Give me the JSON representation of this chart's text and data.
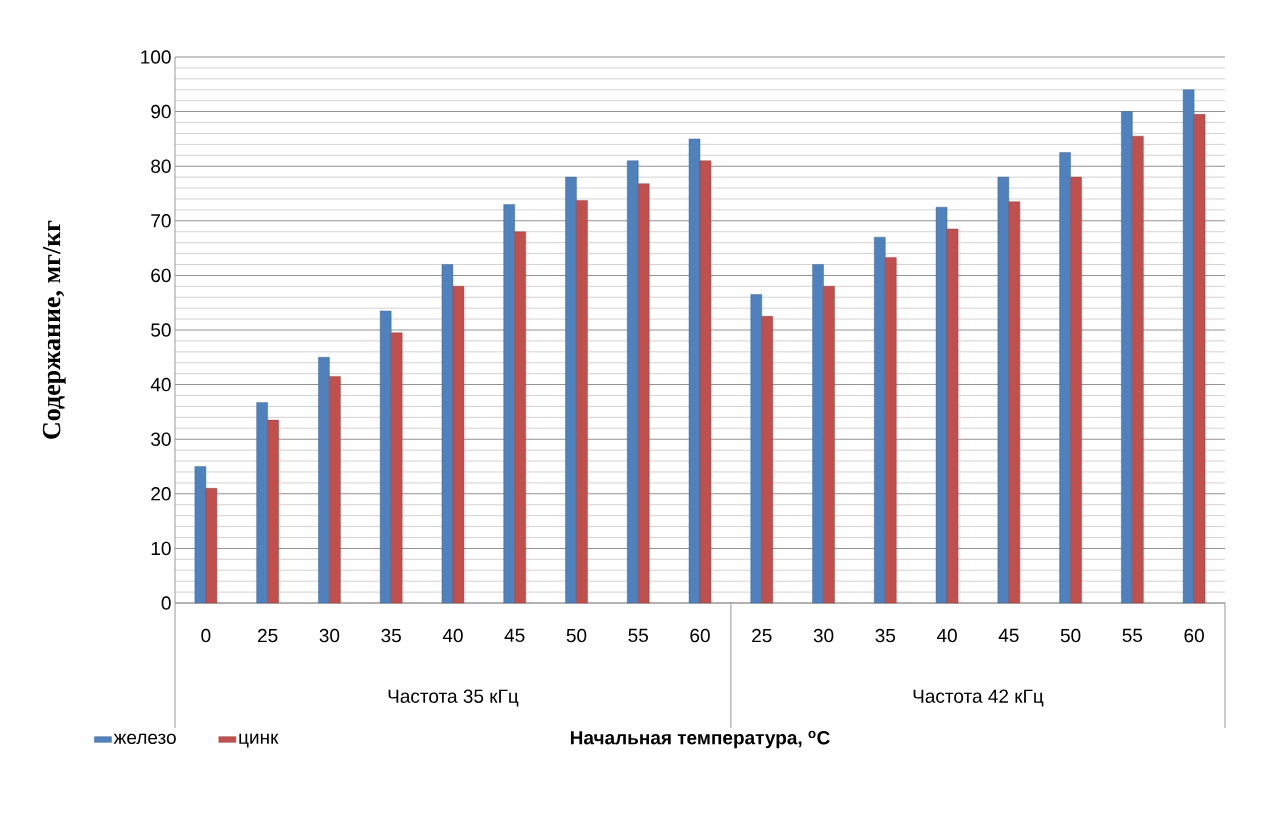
{
  "chart_data": {
    "type": "bar",
    "xlabel": "Начальная температура, $^{o}$C",
    "ylabel": "Содержание, мг/кг",
    "categories": [
      "0",
      "25",
      "30",
      "35",
      "40",
      "45",
      "50",
      "55",
      "60",
      "25",
      "30",
      "35",
      "40",
      "45",
      "50",
      "55",
      "60"
    ],
    "series": [
      {
        "name": "железо",
        "color": "#4f81bd",
        "values": [
          25,
          36.7,
          45,
          53.5,
          62,
          73,
          78,
          81,
          85,
          56.5,
          62,
          67,
          72.5,
          78,
          82.5,
          90,
          94
        ]
      },
      {
        "name": "цинк",
        "color": "#c0504d",
        "values": [
          21,
          33.5,
          41.5,
          49.5,
          58,
          68,
          73.7,
          76.8,
          81,
          52.5,
          58,
          63.3,
          68.5,
          73.5,
          78,
          85.5,
          89.5
        ]
      }
    ],
    "annotations": [
      "Частота 35 кГц",
      "Частота 42 кГц"
    ],
    "ylim": [
      0,
      100
    ],
    "yticks": [
      0,
      10,
      20,
      30,
      40,
      50,
      60,
      70,
      80,
      90,
      100
    ],
    "grid": "y",
    "legend": "bottom left"
  }
}
